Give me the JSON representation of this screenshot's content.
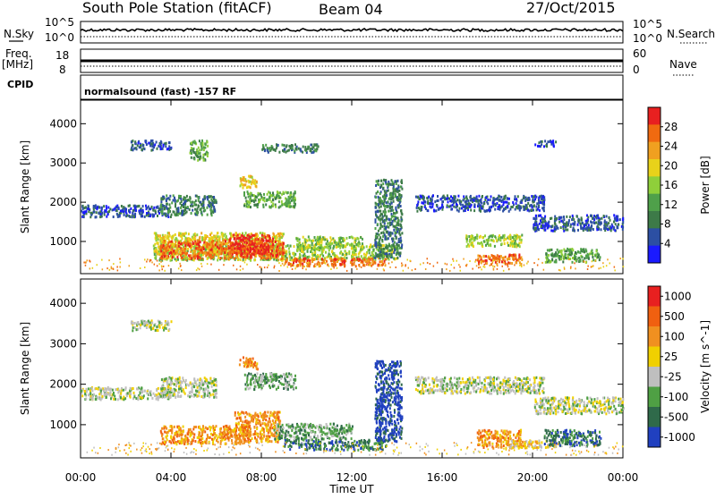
{
  "header": {
    "station": "South Pole Station (fitACF)",
    "beam": "Beam 04",
    "date": "27/Oct/2015",
    "cpid_label": "CPID",
    "cpid_text": "normalsound (fast) -157 RF"
  },
  "strips": {
    "nsky": {
      "label": "N.Sky",
      "ticks": [
        "10^5",
        "10^0"
      ],
      "right_label": "N.Search",
      "right_ticks": [
        "10^5",
        "10^0"
      ]
    },
    "freq": {
      "label": "Freq.",
      "unit": "[MHz]",
      "ticks": [
        "18",
        "8"
      ],
      "right_label": "Nave",
      "right_ticks": [
        "60",
        "0"
      ]
    }
  },
  "chart_data": [
    {
      "type": "heatmap",
      "name": "power",
      "ylabel": "Slant Range [km]",
      "yticks": [
        "1000",
        "2000",
        "3000",
        "4000"
      ],
      "ylim": [
        180,
        4600
      ],
      "colorbar_label": "Power [dB]",
      "colorbar_ticks": [
        "4",
        "8",
        "12",
        "16",
        "20",
        "24",
        "28"
      ],
      "colors": [
        "#1a1aff",
        "#2c4fa3",
        "#3d7a48",
        "#4fa04a",
        "#8fcf3a",
        "#e8d21a",
        "#f0a020",
        "#f06a10",
        "#e82020"
      ],
      "regions": [
        {
          "x0": 0.0,
          "x1": 4.0,
          "y0": 1650,
          "y1": 1950,
          "level": 1
        },
        {
          "x0": 3.5,
          "x1": 6.0,
          "y0": 1700,
          "y1": 2200,
          "level": 2
        },
        {
          "x0": 2.2,
          "x1": 4.0,
          "y0": 3350,
          "y1": 3600,
          "level": 1
        },
        {
          "x0": 4.8,
          "x1": 5.6,
          "y0": 3100,
          "y1": 3600,
          "level": 3
        },
        {
          "x0": 7.2,
          "x1": 9.5,
          "y0": 1900,
          "y1": 2300,
          "level": 3
        },
        {
          "x0": 8.0,
          "x1": 10.5,
          "y0": 3300,
          "y1": 3500,
          "level": 2
        },
        {
          "x0": 7.0,
          "x1": 7.8,
          "y0": 2400,
          "y1": 2700,
          "level": 5
        },
        {
          "x0": 3.2,
          "x1": 14.0,
          "y0": 550,
          "y1": 950,
          "level": 4
        },
        {
          "x0": 3.2,
          "x1": 9.0,
          "y0": 700,
          "y1": 1250,
          "level": 5
        },
        {
          "x0": 3.5,
          "x1": 9.0,
          "y0": 600,
          "y1": 1050,
          "level": 7
        },
        {
          "x0": 6.5,
          "x1": 8.5,
          "y0": 700,
          "y1": 1200,
          "level": 8
        },
        {
          "x0": 9.5,
          "x1": 12.5,
          "y0": 850,
          "y1": 1150,
          "level": 4
        },
        {
          "x0": 9.0,
          "x1": 13.5,
          "y0": 400,
          "y1": 600,
          "level": 7
        },
        {
          "x0": 13.0,
          "x1": 14.2,
          "y0": 600,
          "y1": 2600,
          "level": 2
        },
        {
          "x0": 14.8,
          "x1": 20.5,
          "y0": 1800,
          "y1": 2200,
          "level": 1
        },
        {
          "x0": 20.0,
          "x1": 24.0,
          "y0": 1300,
          "y1": 1700,
          "level": 1
        },
        {
          "x0": 17.0,
          "x1": 19.5,
          "y0": 900,
          "y1": 1200,
          "level": 4
        },
        {
          "x0": 17.5,
          "x1": 19.5,
          "y0": 450,
          "y1": 700,
          "level": 7
        },
        {
          "x0": 20.5,
          "x1": 23.0,
          "y0": 500,
          "y1": 850,
          "level": 3
        },
        {
          "x0": 20.0,
          "x1": 21.0,
          "y0": 3450,
          "y1": 3600,
          "level": 1
        }
      ]
    },
    {
      "type": "heatmap",
      "name": "velocity",
      "ylabel": "Slant Range [km]",
      "yticks": [
        "1000",
        "2000",
        "3000",
        "4000"
      ],
      "ylim": [
        180,
        4600
      ],
      "colorbar_label": "Velocity [m s^-1]",
      "colorbar_ticks": [
        "1000",
        "500",
        "100",
        "25",
        "-25",
        "-100",
        "-500",
        "-1000"
      ],
      "colors": [
        "#2040c0",
        "#2f6a4a",
        "#4fa044",
        "#bfbfbf",
        "#f0d000",
        "#f09020",
        "#f06010",
        "#e82020"
      ],
      "regions": [
        {
          "x0": 0.0,
          "x1": 4.0,
          "y0": 1650,
          "y1": 1950,
          "level": 3
        },
        {
          "x0": 3.5,
          "x1": 6.0,
          "y0": 1700,
          "y1": 2200,
          "level": 3
        },
        {
          "x0": 2.2,
          "x1": 4.0,
          "y0": 3350,
          "y1": 3600,
          "level": 3
        },
        {
          "x0": 7.2,
          "x1": 9.5,
          "y0": 1900,
          "y1": 2300,
          "level": 2
        },
        {
          "x0": 7.0,
          "x1": 7.8,
          "y0": 2400,
          "y1": 2700,
          "level": 5
        },
        {
          "x0": 3.5,
          "x1": 7.5,
          "y0": 550,
          "y1": 1000,
          "level": 5
        },
        {
          "x0": 6.8,
          "x1": 8.8,
          "y0": 600,
          "y1": 1350,
          "level": 5
        },
        {
          "x0": 8.5,
          "x1": 12.0,
          "y0": 650,
          "y1": 1050,
          "level": 2
        },
        {
          "x0": 9.0,
          "x1": 13.5,
          "y0": 400,
          "y1": 650,
          "level": 1
        },
        {
          "x0": 13.0,
          "x1": 14.2,
          "y0": 600,
          "y1": 2600,
          "level": 0
        },
        {
          "x0": 14.8,
          "x1": 20.5,
          "y0": 1800,
          "y1": 2200,
          "level": 3
        },
        {
          "x0": 20.0,
          "x1": 24.0,
          "y0": 1300,
          "y1": 1700,
          "level": 3
        },
        {
          "x0": 17.5,
          "x1": 19.5,
          "y0": 450,
          "y1": 900,
          "level": 5
        },
        {
          "x0": 19.0,
          "x1": 21.0,
          "y0": 450,
          "y1": 650,
          "level": 4
        },
        {
          "x0": 20.5,
          "x1": 23.0,
          "y0": 500,
          "y1": 900,
          "level": 1
        }
      ]
    }
  ],
  "xaxis": {
    "label": "Time UT",
    "ticks": [
      "00:00",
      "04:00",
      "08:00",
      "12:00",
      "16:00",
      "20:00",
      "00:00"
    ],
    "xlim": [
      0,
      24
    ]
  }
}
